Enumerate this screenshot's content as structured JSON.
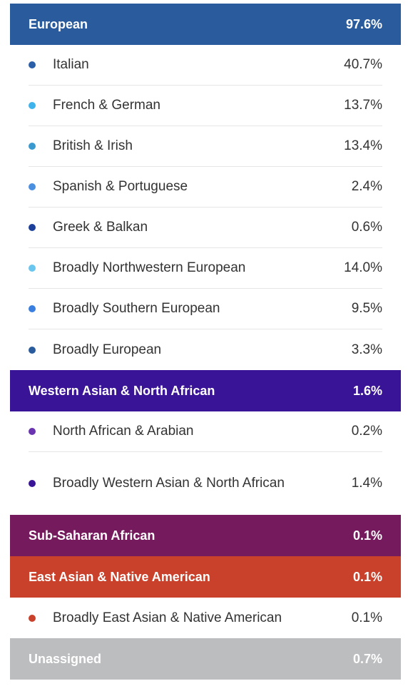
{
  "groups": [
    {
      "label": "European",
      "value": "97.6%",
      "color": "#2a5b9c",
      "items": [
        {
          "label": "Italian",
          "value": "40.7%",
          "dot": "#2b5fa8"
        },
        {
          "label": "French & German",
          "value": "13.7%",
          "dot": "#3fb3ec"
        },
        {
          "label": "British & Irish",
          "value": "13.4%",
          "dot": "#3a9ad0"
        },
        {
          "label": "Spanish & Portuguese",
          "value": "2.4%",
          "dot": "#4a8fe0"
        },
        {
          "label": "Greek & Balkan",
          "value": "0.6%",
          "dot": "#1c3f9a"
        },
        {
          "label": "Broadly Northwestern European",
          "value": "14.0%",
          "dot": "#6ac6ee"
        },
        {
          "label": "Broadly Southern European",
          "value": "9.5%",
          "dot": "#3a7fe0"
        },
        {
          "label": "Broadly European",
          "value": "3.3%",
          "dot": "#2a5b9c"
        }
      ]
    },
    {
      "label": "Western Asian & North African",
      "value": "1.6%",
      "color": "#3a1497",
      "items": [
        {
          "label": "North African & Arabian",
          "value": "0.2%",
          "dot": "#6a34b0"
        },
        {
          "label": "Broadly Western Asian & North African",
          "value": "1.4%",
          "dot": "#3a1497"
        }
      ]
    },
    {
      "label": "Sub-Saharan African",
      "value": "0.1%",
      "color": "#761a5e",
      "items": []
    },
    {
      "label": "East Asian & Native American",
      "value": "0.1%",
      "color": "#c9412a",
      "items": [
        {
          "label": "Broadly East Asian & Native American",
          "value": "0.1%",
          "dot": "#c9412a"
        }
      ]
    },
    {
      "label": "Unassigned",
      "value": "0.7%",
      "color": "#bcbdbf",
      "items": []
    }
  ]
}
